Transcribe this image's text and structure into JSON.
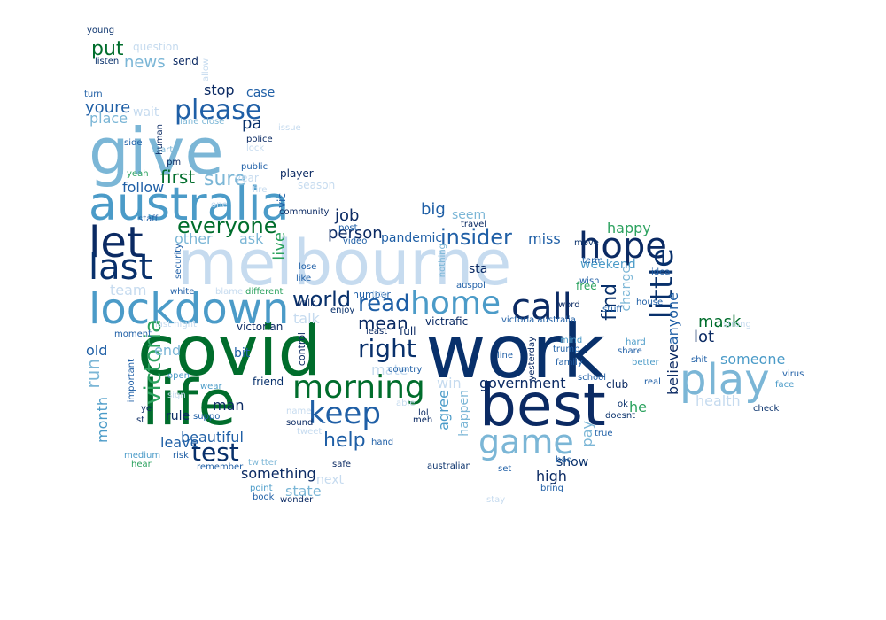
{
  "palette": {
    "navy": "#0b2a63",
    "dark_blue": "#08306b",
    "blue": "#1f5fa6",
    "teal_blue": "#4b9bc8",
    "light_blue": "#7bb6d6",
    "pale_blue": "#c6dbef",
    "dark_green": "#006d2c",
    "green": "#2ca25f",
    "black_navy": "#111a3a"
  },
  "words": [
    "work",
    "best",
    "covid",
    "life",
    "melbourne",
    "give",
    "australia",
    "let",
    "lockdown",
    "last",
    "hope",
    "call",
    "home",
    "play",
    "game",
    "morning",
    "keep",
    "little",
    "right",
    "read",
    "please",
    "test",
    "victoria",
    "world",
    "everyone",
    "insider",
    "help",
    "mean",
    "sure",
    "first",
    "put",
    "news",
    "stop",
    "case",
    "youre",
    "place",
    "pa",
    "follow",
    "job",
    "big",
    "seem",
    "person",
    "pandemic",
    "miss",
    "happy",
    "other",
    "ask",
    "live",
    "find",
    "mask",
    "lot",
    "someone",
    "health",
    "anyone",
    "believe",
    "change",
    "weekend",
    "team",
    "old",
    "run",
    "end",
    "month",
    "leave",
    "beautiful",
    "man",
    "rule",
    "something",
    "state",
    "high",
    "show",
    "government",
    "agree",
    "win",
    "happen",
    "he",
    "pay",
    "club",
    "victrafic",
    "victoria australia",
    "victorian",
    "talk",
    "mate",
    "full",
    "bit",
    "friend",
    "control",
    "country",
    "number",
    "enjoy",
    "least",
    "line",
    "yesterday",
    "trump",
    "mind",
    "family",
    "hard",
    "share",
    "better",
    "real",
    "shit",
    "virus",
    "face",
    "check",
    "school",
    "ok",
    "doesnt",
    "true",
    "bad",
    "set",
    "australian",
    "next",
    "safe",
    "remember",
    "hear",
    "medium",
    "risk",
    "twitter",
    "point",
    "book",
    "wonder",
    "bring",
    "stay",
    "sound",
    "tweet",
    "lol",
    "meh",
    "hand",
    "able",
    "name",
    "st",
    "ye",
    "suppo",
    "wear",
    "sign",
    "open",
    "important",
    "moment",
    "last night",
    "white",
    "blame",
    "different",
    "boy",
    "post",
    "video",
    "lose",
    "like",
    "walk",
    "security",
    "staff",
    "one",
    "community",
    "vic",
    "player",
    "public",
    "police",
    "issue",
    "lock",
    "side",
    "start",
    "yeah",
    "pm",
    "human",
    "turn",
    "lane close",
    "wait",
    "young",
    "question",
    "listen",
    "allow",
    "send",
    "travel",
    "nothing",
    "auspol",
    "wish",
    "move",
    "term",
    "idea",
    "house",
    "stuff",
    "word",
    "season",
    "fire",
    "strong",
    "free",
    "sta",
    "year"
  ]
}
